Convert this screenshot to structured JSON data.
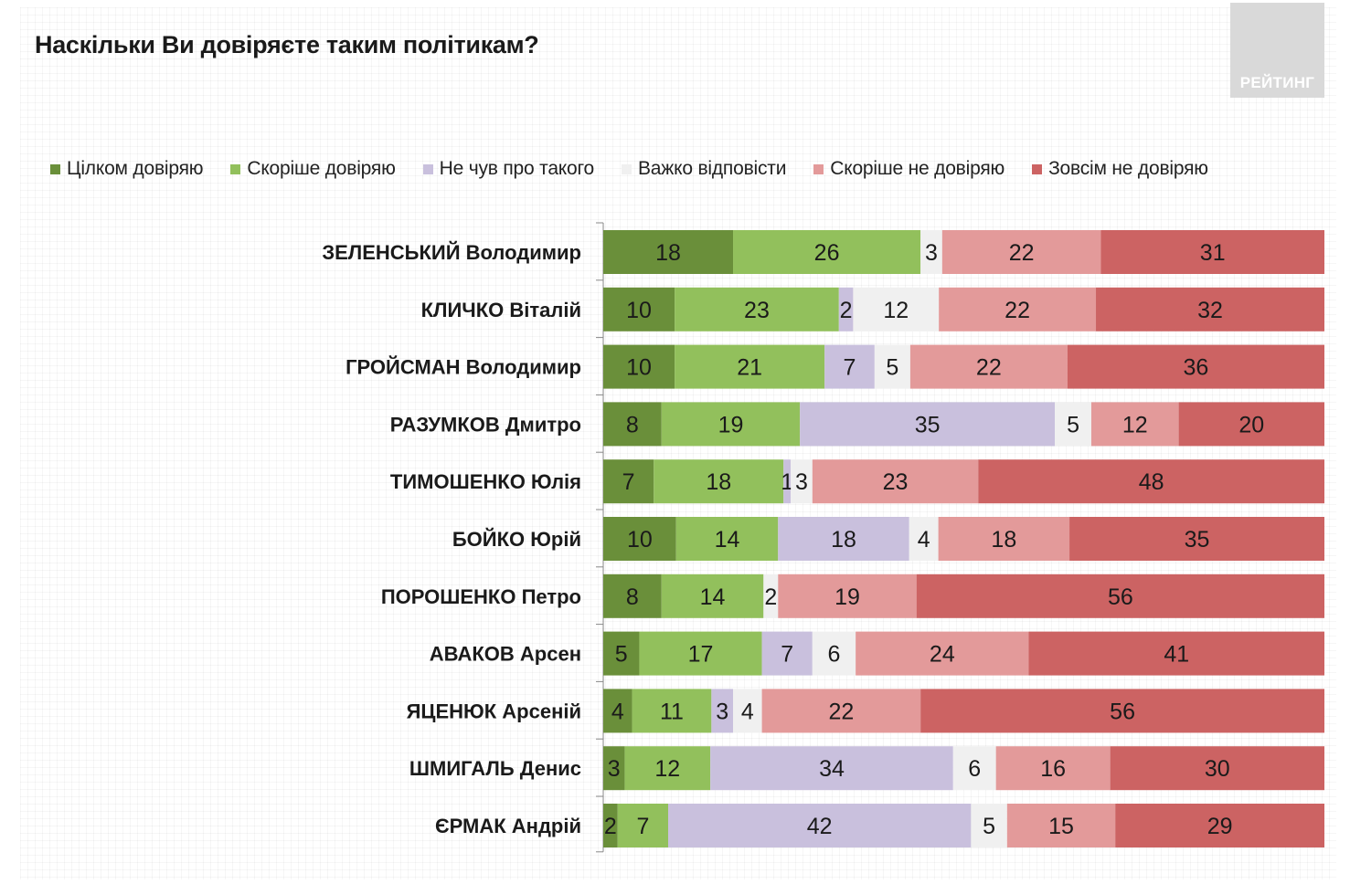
{
  "chart_data": {
    "type": "bar",
    "orientation": "horizontal",
    "stacked": true,
    "title": "Наскільки Ви довіряєте таким політикам?",
    "categories": [
      "ЗЕЛЕНСЬКИЙ Володимир",
      "КЛИЧКО Віталій",
      "ГРОЙСМАН Володимир",
      "РАЗУМКОВ Дмитро",
      "ТИМОШЕНКО Юлія",
      "БОЙКО Юрій",
      "ПОРОШЕНКО Петро",
      "АВАКОВ Арсен",
      "ЯЦЕНЮК Арсеній",
      "ШМИГАЛЬ Денис",
      "ЄРМАК Андрій"
    ],
    "series": [
      {
        "name": "Цілком довіряю",
        "color": "#6a8f3a",
        "values": [
          18,
          10,
          10,
          8,
          7,
          10,
          8,
          5,
          4,
          3,
          2
        ]
      },
      {
        "name": "Скоріше довіряю",
        "color": "#92c05c",
        "values": [
          26,
          23,
          21,
          19,
          18,
          14,
          14,
          17,
          11,
          12,
          7
        ]
      },
      {
        "name": "Не чув про такого",
        "color": "#c9c0dd",
        "values": [
          0,
          2,
          7,
          35,
          1,
          18,
          0,
          7,
          3,
          34,
          42
        ]
      },
      {
        "name": "Важко відповісти",
        "color": "#f0f0f0",
        "values": [
          3,
          12,
          5,
          5,
          3,
          4,
          2,
          6,
          4,
          6,
          5
        ]
      },
      {
        "name": "Скоріше не довіряю",
        "color": "#e39a9a",
        "values": [
          22,
          22,
          22,
          12,
          23,
          18,
          19,
          24,
          22,
          16,
          15
        ]
      },
      {
        "name": "Зовсім не довіряю",
        "color": "#cc6363",
        "values": [
          31,
          32,
          36,
          20,
          48,
          35,
          56,
          41,
          56,
          30,
          29
        ]
      }
    ],
    "xlim": [
      0,
      100
    ],
    "legend_position": "top",
    "grid": false
  },
  "branding": {
    "logo_text": "РЕЙТИНГ"
  }
}
